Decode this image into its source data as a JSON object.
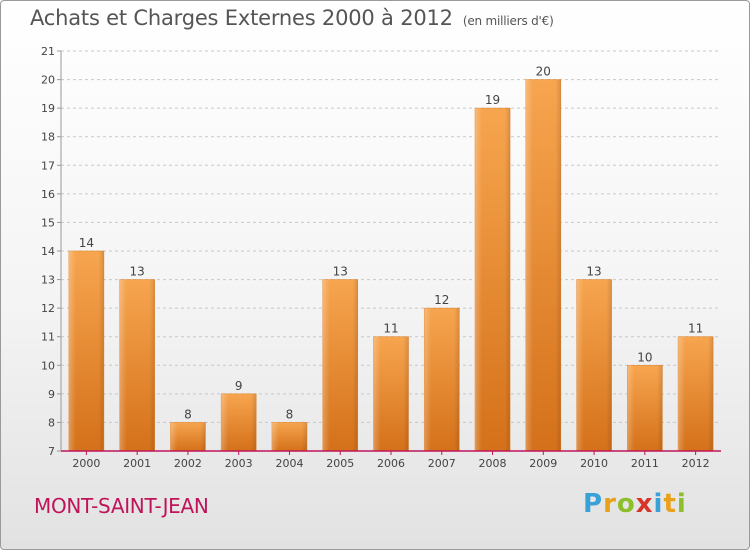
{
  "header": {
    "title": "Achats et Charges Externes 2000 à 2012",
    "unit": "(en milliers d'€)"
  },
  "footer": {
    "place": "MONT-SAINT-JEAN",
    "logo": "Proxiti"
  },
  "colors": {
    "bar_light": "#f7a54f",
    "bar_dark": "#d4711a",
    "axis": "#c0145a",
    "grid": "#c8c8c8"
  },
  "chart_data": {
    "type": "bar",
    "categories": [
      "2000",
      "2001",
      "2002",
      "2003",
      "2004",
      "2005",
      "2006",
      "2007",
      "2008",
      "2009",
      "2010",
      "2011",
      "2012"
    ],
    "values": [
      14,
      13,
      8,
      9,
      8,
      13,
      11,
      12,
      19,
      20,
      13,
      10,
      11
    ],
    "title": "Achats et Charges Externes 2000 à 2012",
    "xlabel": "",
    "ylabel": "",
    "ylim": [
      7,
      21
    ],
    "yticks": [
      7,
      8,
      9,
      10,
      11,
      12,
      13,
      14,
      15,
      16,
      17,
      18,
      19,
      20,
      21
    ],
    "grid": true
  }
}
